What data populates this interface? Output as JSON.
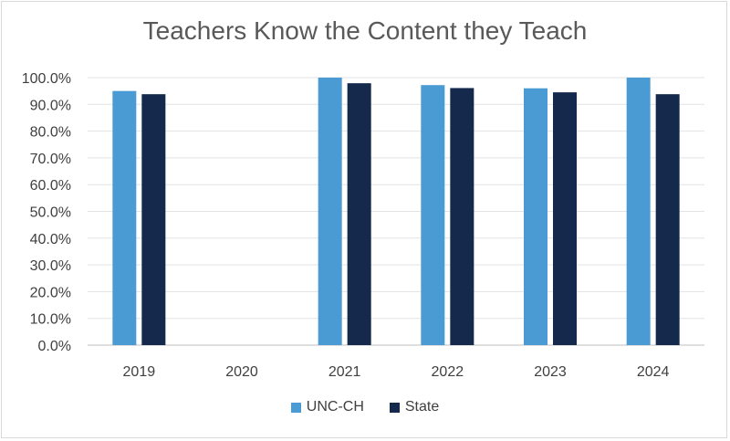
{
  "chart_data": {
    "type": "bar",
    "title": "Teachers Know the Content they Teach",
    "xlabel": "",
    "ylabel": "",
    "categories": [
      "2019",
      "2020",
      "2021",
      "2022",
      "2023",
      "2024"
    ],
    "series": [
      {
        "name": "UNC-CH",
        "color": "#4a9bd4",
        "values": [
          95.0,
          null,
          100.0,
          97.2,
          96.0,
          100.0
        ]
      },
      {
        "name": "State",
        "color": "#14294b",
        "values": [
          93.8,
          null,
          97.9,
          96.1,
          94.5,
          93.8
        ]
      }
    ],
    "ylim": [
      0,
      100
    ],
    "yticks": [
      "0.0%",
      "10.0%",
      "20.0%",
      "30.0%",
      "40.0%",
      "50.0%",
      "60.0%",
      "70.0%",
      "80.0%",
      "90.0%",
      "100.0%"
    ],
    "grid": true,
    "legend_position": "bottom"
  }
}
